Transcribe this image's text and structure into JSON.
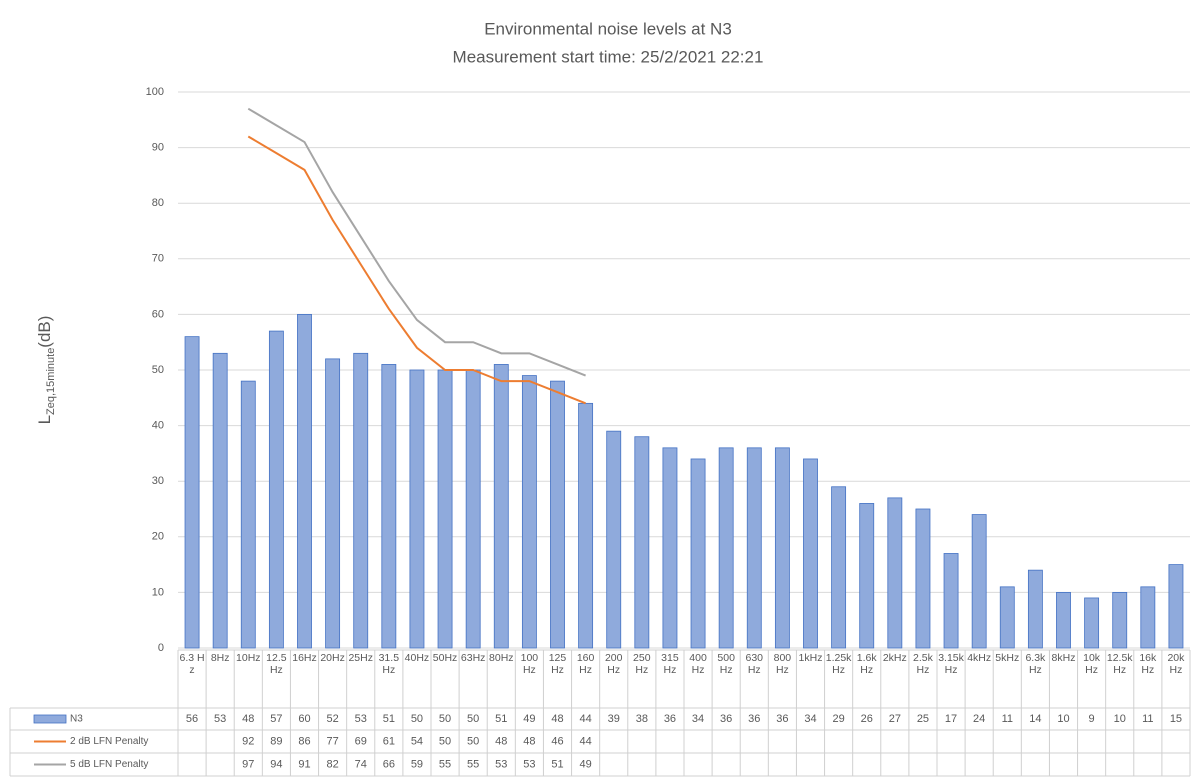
{
  "chart_data": {
    "type": "bar",
    "title": "Environmental noise levels at N3",
    "subtitle": "Measurement start time: 25/2/2021 22:21",
    "y_label": "L",
    "y_label_subscript": "Zeq,15minute",
    "y_label_suffix": "(dB)",
    "categories": [
      "6.3 Hz",
      "8Hz",
      "10Hz",
      "12.5Hz",
      "16Hz",
      "20Hz",
      "25Hz",
      "31.5Hz",
      "40Hz",
      "50Hz",
      "63Hz",
      "80Hz",
      "100 Hz",
      "125 Hz",
      "160 Hz",
      "200 Hz",
      "250 Hz",
      "315 Hz",
      "400 Hz",
      "500 Hz",
      "630 Hz",
      "800 Hz",
      "1kHz",
      "1.25kHz",
      "1.6k Hz",
      "2kHz",
      "2.5k Hz",
      "3.15kHz",
      "4kHz",
      "5kHz",
      "6.3k Hz",
      "8kHz",
      "10k Hz",
      "12.5kHz",
      "16k Hz",
      "20k Hz"
    ],
    "series": [
      {
        "name": "N3",
        "type": "bar",
        "color": "#8faadc",
        "values": [
          56,
          53,
          48,
          57,
          60,
          52,
          53,
          51,
          50,
          50,
          50,
          51,
          49,
          48,
          44,
          39,
          38,
          36,
          34,
          36,
          36,
          36,
          34,
          29,
          26,
          27,
          25,
          17,
          24,
          11,
          14,
          10,
          9,
          10,
          11,
          15
        ]
      },
      {
        "name": "2 dB LFN Penalty",
        "type": "line",
        "color": "#ed7d31",
        "values": [
          null,
          null,
          92,
          89,
          86,
          77,
          69,
          61,
          54,
          50,
          50,
          48,
          48,
          46,
          44,
          null,
          null,
          null,
          null,
          null,
          null,
          null,
          null,
          null,
          null,
          null,
          null,
          null,
          null,
          null,
          null,
          null,
          null,
          null,
          null,
          null
        ]
      },
      {
        "name": "5 dB LFN Penalty",
        "type": "line",
        "color": "#a5a5a5",
        "values": [
          null,
          null,
          97,
          94,
          91,
          82,
          74,
          66,
          59,
          55,
          55,
          53,
          53,
          51,
          49,
          null,
          null,
          null,
          null,
          null,
          null,
          null,
          null,
          null,
          null,
          null,
          null,
          null,
          null,
          null,
          null,
          null,
          null,
          null,
          null,
          null
        ]
      }
    ],
    "ylim": [
      0,
      100
    ],
    "yticks": [
      0,
      10,
      20,
      30,
      40,
      50,
      60,
      70,
      80,
      90,
      100
    ],
    "grid": true
  }
}
